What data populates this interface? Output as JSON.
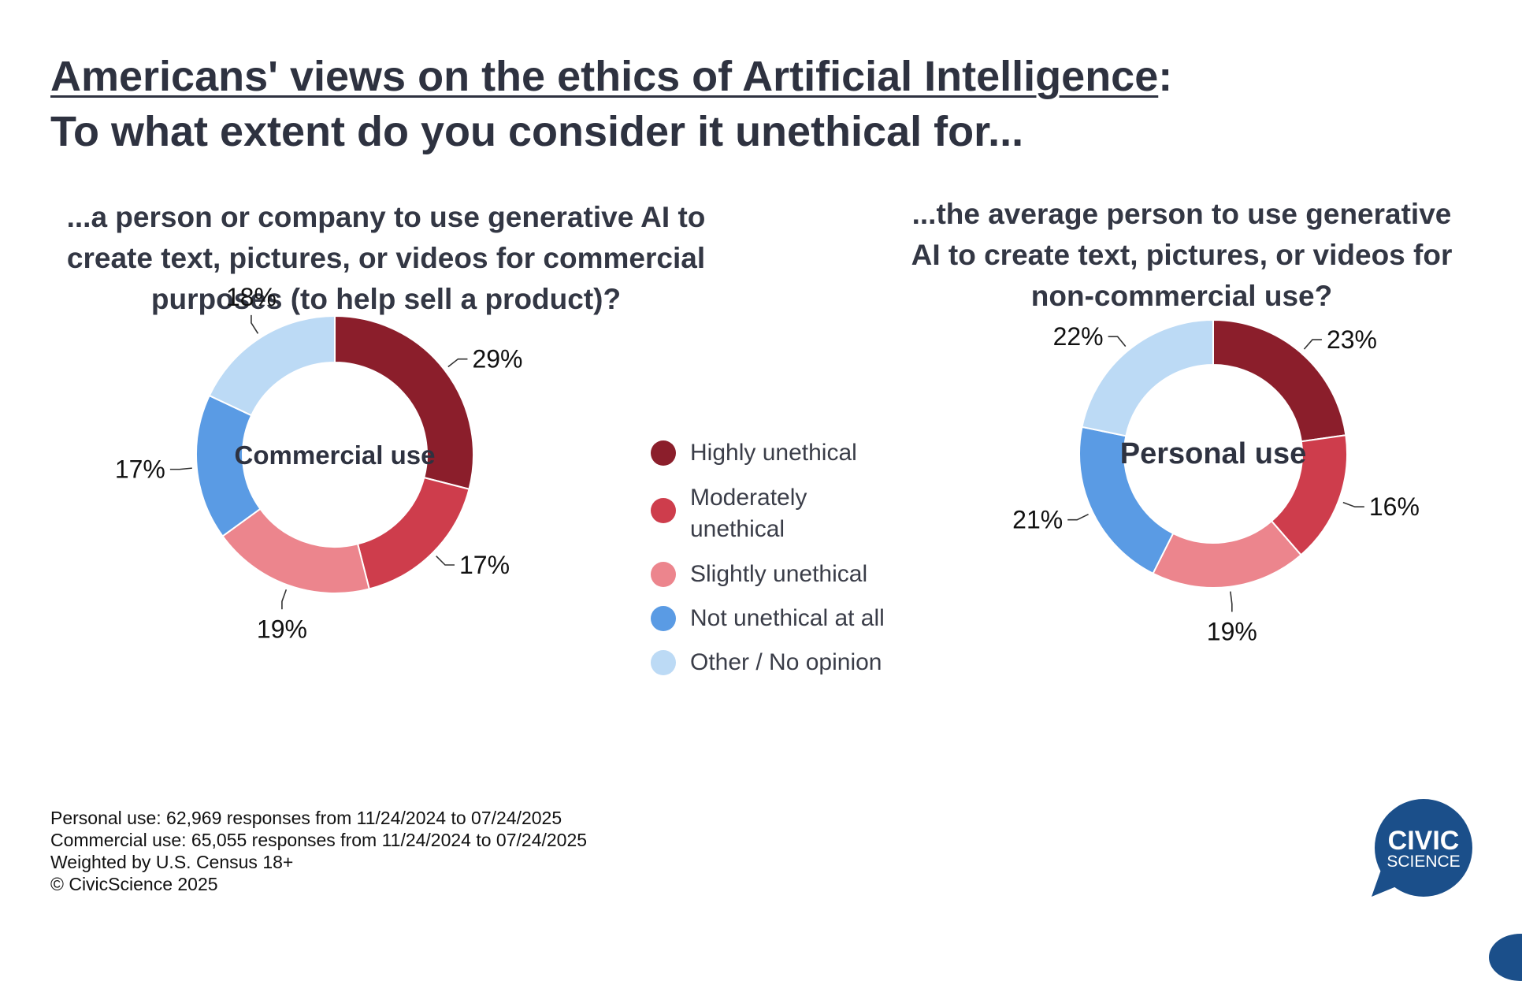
{
  "title_underlined": "Americans' views on the ethics of Artificial Intelligence",
  "title_colon": ":",
  "title_line2": "To what extent do you consider it unethical for...",
  "legend": [
    {
      "label": "Highly unethical",
      "color": "#8b1e2b"
    },
    {
      "label": "Moderately\nunethical",
      "color": "#ce3d4c"
    },
    {
      "label": "Slightly unethical",
      "color": "#ec858d"
    },
    {
      "label": "Not unethical at all",
      "color": "#5a9be4"
    },
    {
      "label": "Other / No opinion",
      "color": "#bcdaf5"
    }
  ],
  "chart_data": [
    {
      "type": "pie",
      "donut": true,
      "question": "...a person or company to use generative AI to\ncreate text, pictures, or videos for commercial\npurposes (to help sell a product)?",
      "center_label": "Commercial use",
      "categories": [
        "Highly unethical",
        "Moderately unethical",
        "Slightly unethical",
        "Not unethical at all",
        "Other / No opinion"
      ],
      "values": [
        29,
        17,
        19,
        17,
        18
      ],
      "labels": [
        "29%",
        "17%",
        "19%",
        "17%",
        "18%"
      ],
      "colors": [
        "#8b1e2b",
        "#ce3d4c",
        "#ec858d",
        "#5a9be4",
        "#bcdaf5"
      ]
    },
    {
      "type": "pie",
      "donut": true,
      "question": "...the average person to use generative\nAI to create text, pictures, or videos for\nnon-commercial use?",
      "center_label": "Personal use",
      "categories": [
        "Highly unethical",
        "Moderately unethical",
        "Slightly unethical",
        "Not unethical at all",
        "Other / No opinion"
      ],
      "values": [
        23,
        16,
        19,
        21,
        22
      ],
      "labels": [
        "23%",
        "16%",
        "19%",
        "21%",
        "22%"
      ],
      "colors": [
        "#8b1e2b",
        "#ce3d4c",
        "#ec858d",
        "#5a9be4",
        "#bcdaf5"
      ]
    }
  ],
  "footer": [
    "Personal use: 62,969 responses from 11/24/2024 to 07/24/2025",
    "Commercial use: 65,055 responses from 11/24/2024 to 07/24/2025",
    "Weighted by U.S. Census 18+",
    "© CivicScience 2025"
  ],
  "logo": {
    "line1": "CIVIC",
    "line2": "SCIENCE",
    "color": "#1b4f8a"
  }
}
